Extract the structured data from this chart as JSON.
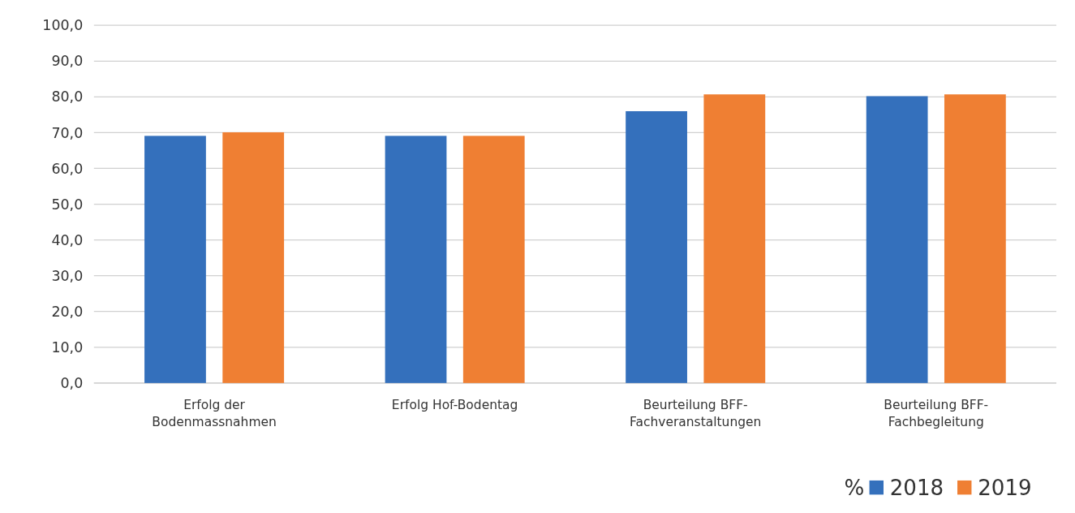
{
  "chart_data": {
    "type": "bar",
    "categories": [
      "Erfolg der Bodenmassnahmen",
      "Erfolg Hof-Bodentag",
      "Beurteilung BFF-Fachveranstaltungen",
      "Beurteilung BFF-Fachbegleitung"
    ],
    "series": [
      {
        "name": "2018",
        "color": "#3470bc",
        "values": [
          69.1,
          69.1,
          76.0,
          80.2
        ]
      },
      {
        "name": "2019",
        "color": "#ef7f33",
        "values": [
          70.1,
          69.1,
          80.7,
          80.7
        ]
      }
    ],
    "ylim": [
      0,
      100
    ],
    "yticks": [
      {
        "value": 0,
        "label": "0,0"
      },
      {
        "value": 10,
        "label": "10,0"
      },
      {
        "value": 20,
        "label": "20,0"
      },
      {
        "value": 30,
        "label": "30,0"
      },
      {
        "value": 40,
        "label": "40,0"
      },
      {
        "value": 50,
        "label": "50,0"
      },
      {
        "value": 60,
        "label": "60,0"
      },
      {
        "value": 70,
        "label": "70,0"
      },
      {
        "value": 80,
        "label": "80,0"
      },
      {
        "value": 90,
        "label": "90,0"
      },
      {
        "value": 100,
        "label": "100,0"
      }
    ],
    "grid": "y",
    "legend": "bottom right",
    "legend_title": "%"
  }
}
